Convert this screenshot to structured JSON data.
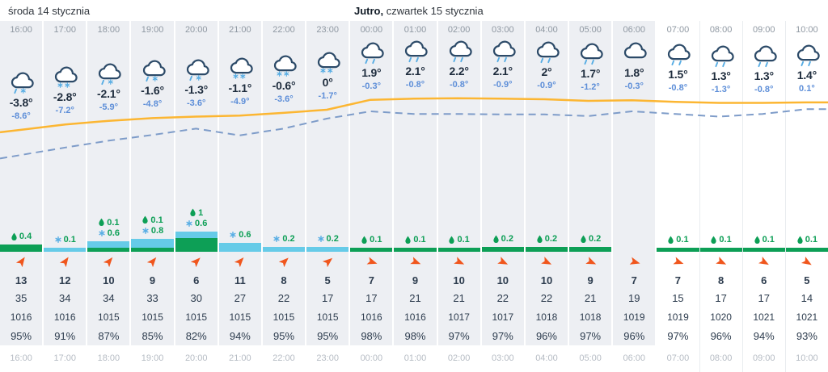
{
  "header": {
    "today": "środa 14 stycznia",
    "tomorrow_prefix": "Jutro,",
    "tomorrow_rest": " czwartek 15 stycznia"
  },
  "colors": {
    "temp_line": "#fcb632",
    "feels_line": "#7e9cc9",
    "rain": "#0d9f56",
    "snow": "#57ade4",
    "snow_bar": "#66cbe8",
    "wind_arrow": "#f0561d",
    "icon_stroke": "#2c4a68",
    "night_bg": "#edeff3"
  },
  "columns": [
    {
      "hour": "16:00",
      "night": true,
      "icon": "sleet",
      "temp": "-3.8°",
      "feels": "-8.6°",
      "rain": 0.4,
      "snow": 0,
      "wind_deg": 35,
      "wind_speed": "13",
      "wind_gust": "35",
      "pressure": "1016",
      "humidity": "95%"
    },
    {
      "hour": "17:00",
      "night": true,
      "icon": "snow",
      "temp": "-2.8°",
      "feels": "-7.2°",
      "rain": 0,
      "snow": 0.1,
      "wind_deg": 35,
      "wind_speed": "12",
      "wind_gust": "34",
      "pressure": "1016",
      "humidity": "91%"
    },
    {
      "hour": "18:00",
      "night": true,
      "icon": "sleet",
      "temp": "-2.1°",
      "feels": "-5.9°",
      "rain": 0.1,
      "snow": 0.6,
      "wind_deg": 40,
      "wind_speed": "10",
      "wind_gust": "34",
      "pressure": "1015",
      "humidity": "87%"
    },
    {
      "hour": "19:00",
      "night": true,
      "icon": "sleet",
      "temp": "-1.6°",
      "feels": "-4.8°",
      "rain": 0.1,
      "snow": 0.8,
      "wind_deg": 40,
      "wind_speed": "9",
      "wind_gust": "33",
      "pressure": "1015",
      "humidity": "85%"
    },
    {
      "hour": "20:00",
      "night": true,
      "icon": "sleet",
      "temp": "-1.3°",
      "feels": "-3.6°",
      "rain": 1,
      "snow": 0.6,
      "wind_deg": 45,
      "wind_speed": "6",
      "wind_gust": "30",
      "pressure": "1015",
      "humidity": "82%"
    },
    {
      "hour": "21:00",
      "night": true,
      "icon": "snow",
      "temp": "-1.1°",
      "feels": "-4.9°",
      "rain": 0,
      "snow": 0.6,
      "wind_deg": 42,
      "wind_speed": "11",
      "wind_gust": "27",
      "pressure": "1015",
      "humidity": "94%"
    },
    {
      "hour": "22:00",
      "night": true,
      "icon": "snow",
      "temp": "-0.6°",
      "feels": "-3.6°",
      "rain": 0,
      "snow": 0.2,
      "wind_deg": 46,
      "wind_speed": "8",
      "wind_gust": "22",
      "pressure": "1015",
      "humidity": "95%"
    },
    {
      "hour": "23:00",
      "night": true,
      "icon": "snow",
      "temp": "0°",
      "feels": "-1.7°",
      "rain": 0,
      "snow": 0.2,
      "wind_deg": 50,
      "wind_speed": "5",
      "wind_gust": "17",
      "pressure": "1015",
      "humidity": "95%"
    },
    {
      "hour": "00:00",
      "night": true,
      "icon": "rain",
      "temp": "1.9°",
      "feels": "-0.3°",
      "rain": 0.1,
      "snow": 0,
      "wind_deg": 108,
      "wind_speed": "7",
      "wind_gust": "17",
      "pressure": "1016",
      "humidity": "98%"
    },
    {
      "hour": "01:00",
      "night": true,
      "icon": "rain",
      "temp": "2.1°",
      "feels": "-0.8°",
      "rain": 0.1,
      "snow": 0,
      "wind_deg": 112,
      "wind_speed": "9",
      "wind_gust": "21",
      "pressure": "1016",
      "humidity": "98%"
    },
    {
      "hour": "02:00",
      "night": true,
      "icon": "rain",
      "temp": "2.2°",
      "feels": "-0.8°",
      "rain": 0.1,
      "snow": 0,
      "wind_deg": 115,
      "wind_speed": "10",
      "wind_gust": "21",
      "pressure": "1017",
      "humidity": "97%"
    },
    {
      "hour": "03:00",
      "night": true,
      "icon": "rain",
      "temp": "2.1°",
      "feels": "-0.9°",
      "rain": 0.2,
      "snow": 0,
      "wind_deg": 116,
      "wind_speed": "10",
      "wind_gust": "22",
      "pressure": "1017",
      "humidity": "97%"
    },
    {
      "hour": "04:00",
      "night": true,
      "icon": "rain",
      "temp": "2°",
      "feels": "-0.9°",
      "rain": 0.2,
      "snow": 0,
      "wind_deg": 116,
      "wind_speed": "10",
      "wind_gust": "22",
      "pressure": "1018",
      "humidity": "96%"
    },
    {
      "hour": "05:00",
      "night": true,
      "icon": "rain",
      "temp": "1.7°",
      "feels": "-1.2°",
      "rain": 0.2,
      "snow": 0,
      "wind_deg": 114,
      "wind_speed": "9",
      "wind_gust": "21",
      "pressure": "1018",
      "humidity": "97%"
    },
    {
      "hour": "06:00",
      "night": true,
      "icon": "cloud",
      "temp": "1.8°",
      "feels": "-0.3°",
      "rain": 0,
      "snow": 0,
      "wind_deg": 106,
      "wind_speed": "7",
      "wind_gust": "19",
      "pressure": "1019",
      "humidity": "96%"
    },
    {
      "hour": "07:00",
      "night": false,
      "icon": "rain",
      "temp": "1.5°",
      "feels": "-0.8°",
      "rain": 0.1,
      "snow": 0,
      "wind_deg": 110,
      "wind_speed": "7",
      "wind_gust": "15",
      "pressure": "1019",
      "humidity": "97%"
    },
    {
      "hour": "08:00",
      "night": false,
      "icon": "rain",
      "temp": "1.3°",
      "feels": "-1.3°",
      "rain": 0.1,
      "snow": 0,
      "wind_deg": 116,
      "wind_speed": "8",
      "wind_gust": "17",
      "pressure": "1020",
      "humidity": "96%"
    },
    {
      "hour": "09:00",
      "night": false,
      "icon": "rain",
      "temp": "1.3°",
      "feels": "-0.8°",
      "rain": 0.1,
      "snow": 0,
      "wind_deg": 120,
      "wind_speed": "6",
      "wind_gust": "17",
      "pressure": "1021",
      "humidity": "94%"
    },
    {
      "hour": "10:00",
      "night": false,
      "icon": "rain",
      "temp": "1.4°",
      "feels": "0.1°",
      "rain": 0.1,
      "snow": 0,
      "wind_deg": 122,
      "wind_speed": "5",
      "wind_gust": "14",
      "pressure": "1021",
      "humidity": "93%"
    }
  ],
  "chart_data": {
    "type": "line",
    "x": [
      "16:00",
      "17:00",
      "18:00",
      "19:00",
      "20:00",
      "21:00",
      "22:00",
      "23:00",
      "00:00",
      "01:00",
      "02:00",
      "03:00",
      "04:00",
      "05:00",
      "06:00",
      "07:00",
      "08:00",
      "09:00",
      "10:00"
    ],
    "series": [
      {
        "name": "temperature",
        "unit": "°C",
        "style": "solid",
        "color": "#fcb632",
        "values": [
          -3.8,
          -2.8,
          -2.1,
          -1.6,
          -1.3,
          -1.1,
          -0.6,
          0,
          1.9,
          2.1,
          2.2,
          2.1,
          2,
          1.7,
          1.8,
          1.5,
          1.3,
          1.3,
          1.4
        ]
      },
      {
        "name": "feels_like",
        "unit": "°C",
        "style": "dashed",
        "color": "#7e9cc9",
        "values": [
          -8.6,
          -7.2,
          -5.9,
          -4.8,
          -3.6,
          -4.9,
          -3.6,
          -1.7,
          -0.3,
          -0.8,
          -0.8,
          -0.9,
          -0.9,
          -1.2,
          -0.3,
          -0.8,
          -1.3,
          -0.8,
          0.1
        ]
      }
    ],
    "bars": [
      {
        "name": "rain",
        "color": "#0d9f56",
        "values": [
          0.4,
          0,
          0.1,
          0.1,
          1,
          0,
          0,
          0,
          0.1,
          0.1,
          0.1,
          0.2,
          0.2,
          0.2,
          0,
          0.1,
          0.1,
          0.1,
          0.1
        ]
      },
      {
        "name": "snow",
        "color": "#66cbe8",
        "values": [
          0,
          0.1,
          0.6,
          0.8,
          0.6,
          0.6,
          0.2,
          0.2,
          0,
          0,
          0,
          0,
          0,
          0,
          0,
          0,
          0,
          0,
          0
        ]
      }
    ],
    "rows": {
      "wind_speed": [
        13,
        12,
        10,
        9,
        6,
        11,
        8,
        5,
        7,
        9,
        10,
        10,
        10,
        9,
        7,
        7,
        8,
        6,
        5
      ],
      "wind_gust": [
        35,
        34,
        34,
        33,
        30,
        27,
        22,
        17,
        17,
        21,
        21,
        22,
        22,
        21,
        19,
        15,
        17,
        17,
        14
      ],
      "pressure": [
        1016,
        1016,
        1015,
        1015,
        1015,
        1015,
        1015,
        1015,
        1016,
        1016,
        1017,
        1017,
        1018,
        1018,
        1019,
        1019,
        1020,
        1021,
        1021
      ],
      "humidity": [
        95,
        91,
        87,
        85,
        82,
        94,
        95,
        95,
        98,
        98,
        97,
        97,
        96,
        97,
        96,
        97,
        96,
        94,
        93
      ]
    },
    "ylim": [
      -10,
      4
    ],
    "grid": false,
    "legend": "none"
  }
}
